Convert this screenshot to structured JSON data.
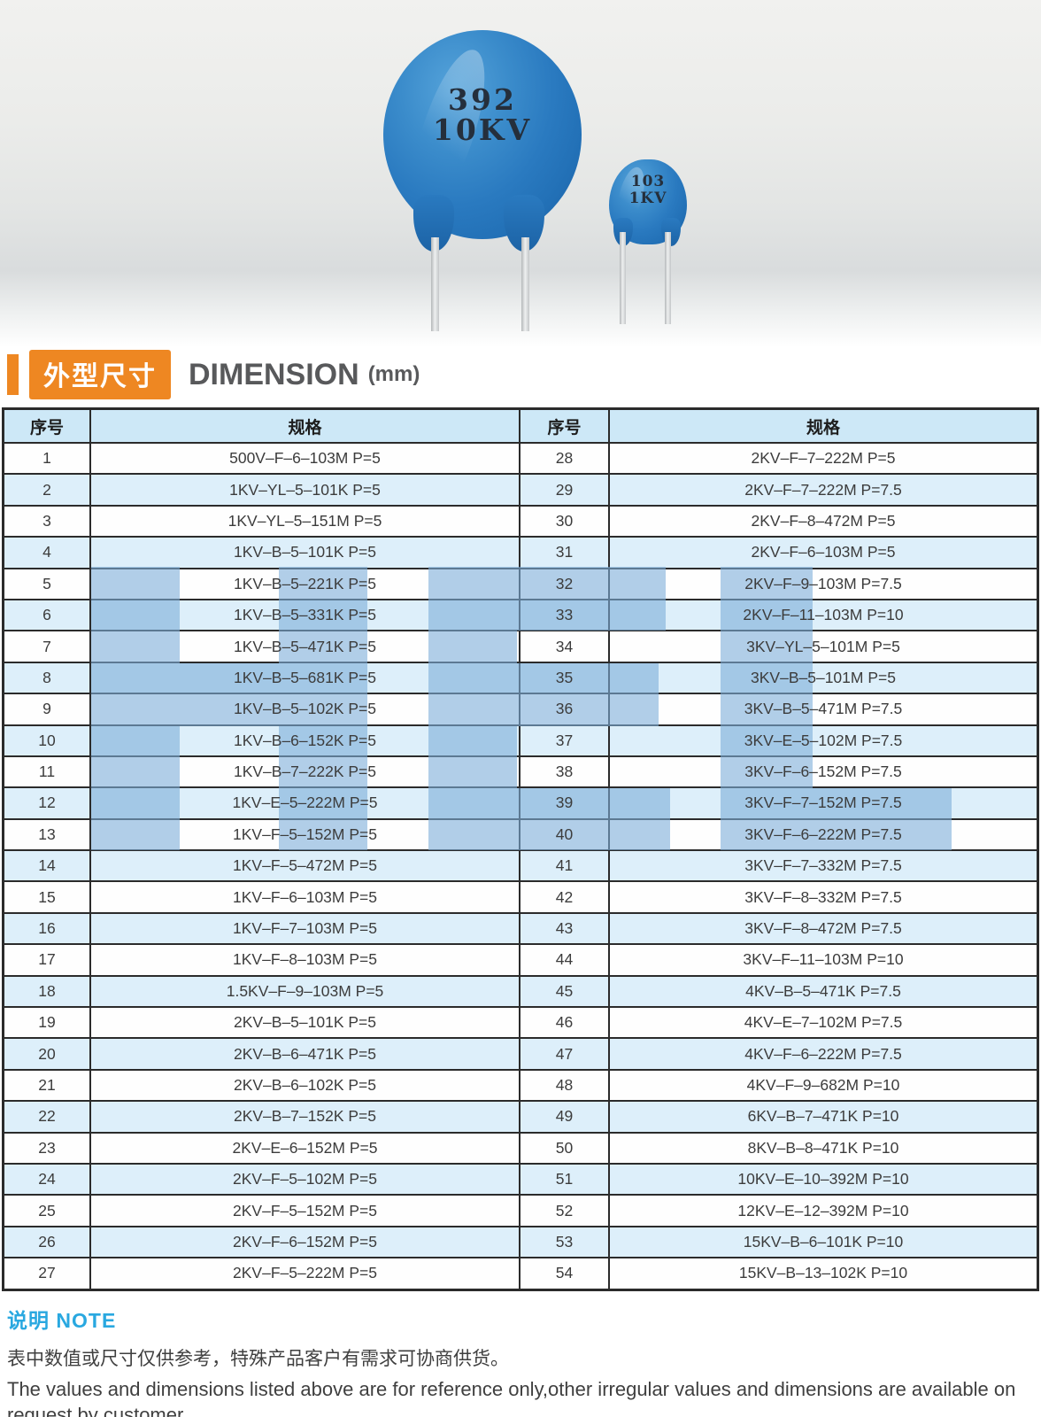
{
  "product_image": {
    "large_capacitor": {
      "line1": "392",
      "line2": "10KV"
    },
    "small_capacitor": {
      "line1": "103",
      "line2": "1KV"
    }
  },
  "section_header": {
    "title_cn": "外型尺寸",
    "title_en": "DIMENSION",
    "unit": "(mm)"
  },
  "table": {
    "headers": [
      "序号",
      "规格",
      "序号",
      "规格"
    ],
    "rows": [
      [
        "1",
        "500V–F–6–103M P=5",
        "28",
        "2KV–F–7–222M P=5"
      ],
      [
        "2",
        "1KV–YL–5–101K P=5",
        "29",
        "2KV–F–7–222M P=7.5"
      ],
      [
        "3",
        "1KV–YL–5–151M P=5",
        "30",
        "2KV–F–8–472M P=5"
      ],
      [
        "4",
        "1KV–B–5–101K P=5",
        "31",
        "2KV–F–6–103M P=5"
      ],
      [
        "5",
        "1KV–B–5–221K P=5",
        "32",
        "2KV–F–9–103M P=7.5"
      ],
      [
        "6",
        "1KV–B–5–331K P=5",
        "33",
        "2KV–F–11–103M P=10"
      ],
      [
        "7",
        "1KV–B–5–471K P=5",
        "34",
        "3KV–YL–5–101M P=5"
      ],
      [
        "8",
        "1KV–B–5–681K P=5",
        "35",
        "3KV–B–5–101M P=5"
      ],
      [
        "9",
        "1KV–B–5–102K P=5",
        "36",
        "3KV–B–5–471M P=7.5"
      ],
      [
        "10",
        "1KV–B–6–152K P=5",
        "37",
        "3KV–E–5–102M P=7.5"
      ],
      [
        "11",
        "1KV–B–7–222K P=5",
        "38",
        "3KV–F–6–152M P=7.5"
      ],
      [
        "12",
        "1KV–E–5–222M P=5",
        "39",
        "3KV–F–7–152M P=7.5"
      ],
      [
        "13",
        "1KV–F–5–152M P=5",
        "40",
        "3KV–F–6–222M P=7.5"
      ],
      [
        "14",
        "1KV–F–5–472M P=5",
        "41",
        "3KV–F–7–332M P=7.5"
      ],
      [
        "15",
        "1KV–F–6–103M P=5",
        "42",
        "3KV–F–8–332M P=7.5"
      ],
      [
        "16",
        "1KV–F–7–103M P=5",
        "43",
        "3KV–F–8–472M P=7.5"
      ],
      [
        "17",
        "1KV–F–8–103M P=5",
        "44",
        "3KV–F–11–103M P=10"
      ],
      [
        "18",
        "1.5KV–F–9–103M P=5",
        "45",
        "4KV–B–5–471K P=7.5"
      ],
      [
        "19",
        "2KV–B–5–101K P=5",
        "46",
        "4KV–E–7–102M P=7.5"
      ],
      [
        "20",
        "2KV–B–6–471K P=5",
        "47",
        "4KV–F–6–222M P=7.5"
      ],
      [
        "21",
        "2KV–B–6–102K P=5",
        "48",
        "4KV–F–9–682M P=10"
      ],
      [
        "22",
        "2KV–B–7–152K P=5",
        "49",
        "6KV–B–7–471K P=10"
      ],
      [
        "23",
        "2KV–E–6–152M P=5",
        "50",
        "8KV–B–8–471K P=10"
      ],
      [
        "24",
        "2KV–F–5–102M P=5",
        "51",
        "10KV–E–10–392M P=10"
      ],
      [
        "25",
        "2KV–F–5–152M P=5",
        "52",
        "12KV–E–12–392M P=10"
      ],
      [
        "26",
        "2KV–F–6–152M P=5",
        "53",
        "15KV–B–6–101K P=10"
      ],
      [
        "27",
        "2KV–F–5–222M P=5",
        "54",
        "15KV–B–13–102K P=10"
      ]
    ]
  },
  "note": {
    "label_cn": "说明",
    "label_en": "NOTE",
    "line_cn": "表中数值或尺寸仅供参考，特殊产品客户有需求可协商供货。",
    "line_en": "The values and dimensions listed above are for reference only,other irregular values and dimensions are available on request  by customer."
  },
  "colors": {
    "accent_orange": "#ee8722",
    "note_blue": "#29a8e0",
    "table_header_bg": "#cde8f7",
    "row_alt_bg": "#ddeffa",
    "watermark_blue": "#7daed8",
    "capacitor_blue": "#2a7ac0"
  }
}
